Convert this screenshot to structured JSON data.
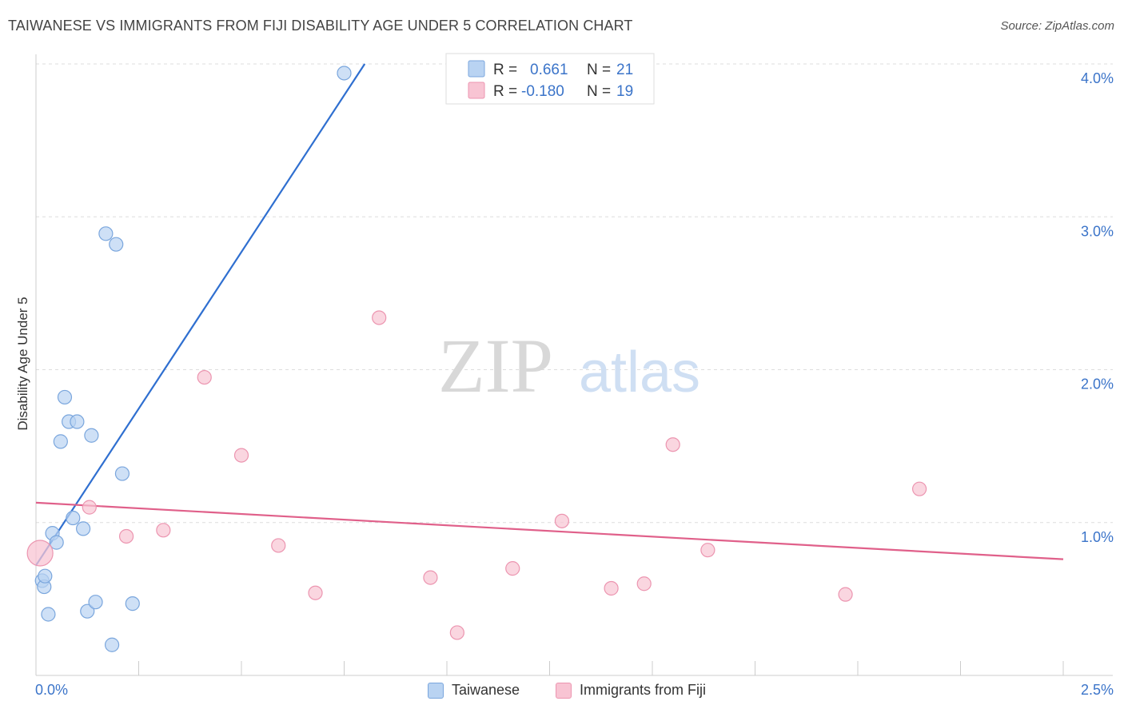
{
  "header": {
    "title": "TAIWANESE VS IMMIGRANTS FROM FIJI DISABILITY AGE UNDER 5 CORRELATION CHART",
    "source": "Source: ZipAtlas.com"
  },
  "watermark": {
    "zip": "ZIP",
    "atlas": "atlas"
  },
  "colors": {
    "taiwanese_fill": "#b9d3f2",
    "taiwanese_stroke": "#7aa6dd",
    "taiwanese_line": "#2f6fd0",
    "fiji_fill": "#f8c4d3",
    "fiji_stroke": "#ec95b0",
    "fiji_line": "#e0608a",
    "axis_text": "#3b74c9",
    "grid": "#dddddd"
  },
  "legend_top": [
    {
      "r_label": "R = ",
      "r_value": "0.661",
      "n_label": "N = ",
      "n_value": "21"
    },
    {
      "r_label": "R = ",
      "r_value": "-0.180",
      "n_label": "N = ",
      "n_value": "19"
    }
  ],
  "legend_bottom": [
    "Taiwanese",
    "Immigrants from Fiji"
  ],
  "chart_data": {
    "type": "scatter",
    "title": "TAIWANESE VS IMMIGRANTS FROM FIJI DISABILITY AGE UNDER 5 CORRELATION CHART",
    "xlabel": "",
    "ylabel": "Disability Age Under 5",
    "xlim": [
      0,
      2.5
    ],
    "ylim": [
      0,
      4.0
    ],
    "x_tick_labels": [
      "0.0%",
      "2.5%"
    ],
    "y_ticks": [
      1.0,
      2.0,
      3.0,
      4.0
    ],
    "y_tick_labels": [
      "1.0%",
      "2.0%",
      "3.0%",
      "4.0%"
    ],
    "series": [
      {
        "name": "Taiwanese",
        "points": [
          {
            "x": 0.015,
            "y": 0.62
          },
          {
            "x": 0.02,
            "y": 0.58
          },
          {
            "x": 0.022,
            "y": 0.65
          },
          {
            "x": 0.03,
            "y": 0.4
          },
          {
            "x": 0.04,
            "y": 0.93
          },
          {
            "x": 0.05,
            "y": 0.87
          },
          {
            "x": 0.06,
            "y": 1.53
          },
          {
            "x": 0.07,
            "y": 1.82
          },
          {
            "x": 0.08,
            "y": 1.66
          },
          {
            "x": 0.09,
            "y": 1.03
          },
          {
            "x": 0.1,
            "y": 1.66
          },
          {
            "x": 0.115,
            "y": 0.96
          },
          {
            "x": 0.125,
            "y": 0.42
          },
          {
            "x": 0.135,
            "y": 1.57
          },
          {
            "x": 0.145,
            "y": 0.48
          },
          {
            "x": 0.185,
            "y": 0.2
          },
          {
            "x": 0.17,
            "y": 2.89
          },
          {
            "x": 0.195,
            "y": 2.82
          },
          {
            "x": 0.21,
            "y": 1.32
          },
          {
            "x": 0.235,
            "y": 0.47
          },
          {
            "x": 0.75,
            "y": 3.94
          }
        ],
        "trend": {
          "x0": 0.0,
          "y0": 0.72,
          "x1": 0.8,
          "y1": 4.0
        }
      },
      {
        "name": "Immigrants from Fiji",
        "points": [
          {
            "x": 0.01,
            "y": 0.8
          },
          {
            "x": 0.13,
            "y": 1.1
          },
          {
            "x": 0.22,
            "y": 0.91
          },
          {
            "x": 0.31,
            "y": 0.95
          },
          {
            "x": 0.41,
            "y": 1.95
          },
          {
            "x": 0.5,
            "y": 1.44
          },
          {
            "x": 0.59,
            "y": 0.85
          },
          {
            "x": 0.68,
            "y": 0.54
          },
          {
            "x": 0.835,
            "y": 2.34
          },
          {
            "x": 0.96,
            "y": 0.64
          },
          {
            "x": 1.025,
            "y": 0.28
          },
          {
            "x": 1.16,
            "y": 0.7
          },
          {
            "x": 1.28,
            "y": 1.01
          },
          {
            "x": 1.4,
            "y": 0.57
          },
          {
            "x": 1.48,
            "y": 0.6
          },
          {
            "x": 1.55,
            "y": 1.51
          },
          {
            "x": 1.635,
            "y": 0.82
          },
          {
            "x": 1.97,
            "y": 0.53
          },
          {
            "x": 2.15,
            "y": 1.22
          }
        ],
        "trend": {
          "x0": 0.0,
          "y0": 1.13,
          "x1": 2.5,
          "y1": 0.76
        }
      }
    ]
  }
}
